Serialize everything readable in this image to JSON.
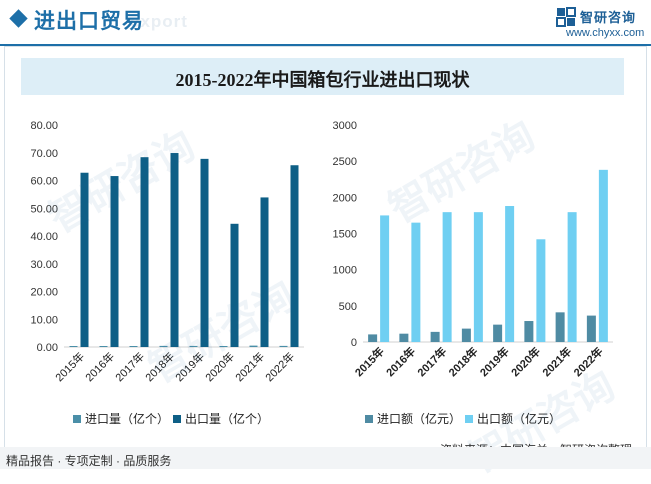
{
  "header": {
    "title": "进出口贸易",
    "title_watermark": "export",
    "brand_name": "智研咨询",
    "brand_url": "www.chyxx.com"
  },
  "chart_title": "2015-2022年中国箱包行业进出口现状",
  "footer": {
    "tagline": "精品报告 · 专项定制 · 品质服务",
    "source": "资料来源：中国海关，智研咨询整理"
  },
  "watermark_text": "智研咨询",
  "colors": {
    "accent": "#1d6fa8",
    "export_volume": "#0e5f86",
    "import_volume": "#4a8fa8",
    "import_value": "#4f8ba3",
    "export_value": "#6fcff2"
  },
  "chart_data": [
    {
      "type": "bar",
      "categories": [
        "2015年",
        "2016年",
        "2017年",
        "2018年",
        "2019年",
        "2020年",
        "2021年",
        "2022年"
      ],
      "series": [
        {
          "name": "进口量（亿个）",
          "values": [
            0.3,
            0.3,
            0.3,
            0.4,
            0.4,
            0.3,
            0.5,
            0.4
          ]
        },
        {
          "name": "出口量（亿个）",
          "values": [
            62.8,
            61.6,
            68.4,
            69.9,
            67.8,
            44.4,
            53.9,
            65.5
          ]
        }
      ],
      "ylim": [
        0,
        80
      ],
      "yticks": [
        "0.00",
        "10.00",
        "20.00",
        "30.00",
        "40.00",
        "50.00",
        "60.00",
        "70.00",
        "80.00"
      ],
      "legend": "bottom",
      "grid": false
    },
    {
      "type": "bar",
      "categories": [
        "2015年",
        "2016年",
        "2017年",
        "2018年",
        "2019年",
        "2020年",
        "2021年",
        "2022年"
      ],
      "series": [
        {
          "name": "进口额（亿元）",
          "values": [
            105,
            115,
            140,
            185,
            240,
            290,
            410,
            365
          ]
        },
        {
          "name": "出口额（亿元）",
          "values": [
            1750,
            1650,
            1795,
            1795,
            1880,
            1420,
            1795,
            2380
          ]
        }
      ],
      "ylim": [
        0,
        3000
      ],
      "yticks": [
        "0",
        "500",
        "1000",
        "1500",
        "2000",
        "2500",
        "3000"
      ],
      "legend": "bottom",
      "grid": false
    }
  ]
}
